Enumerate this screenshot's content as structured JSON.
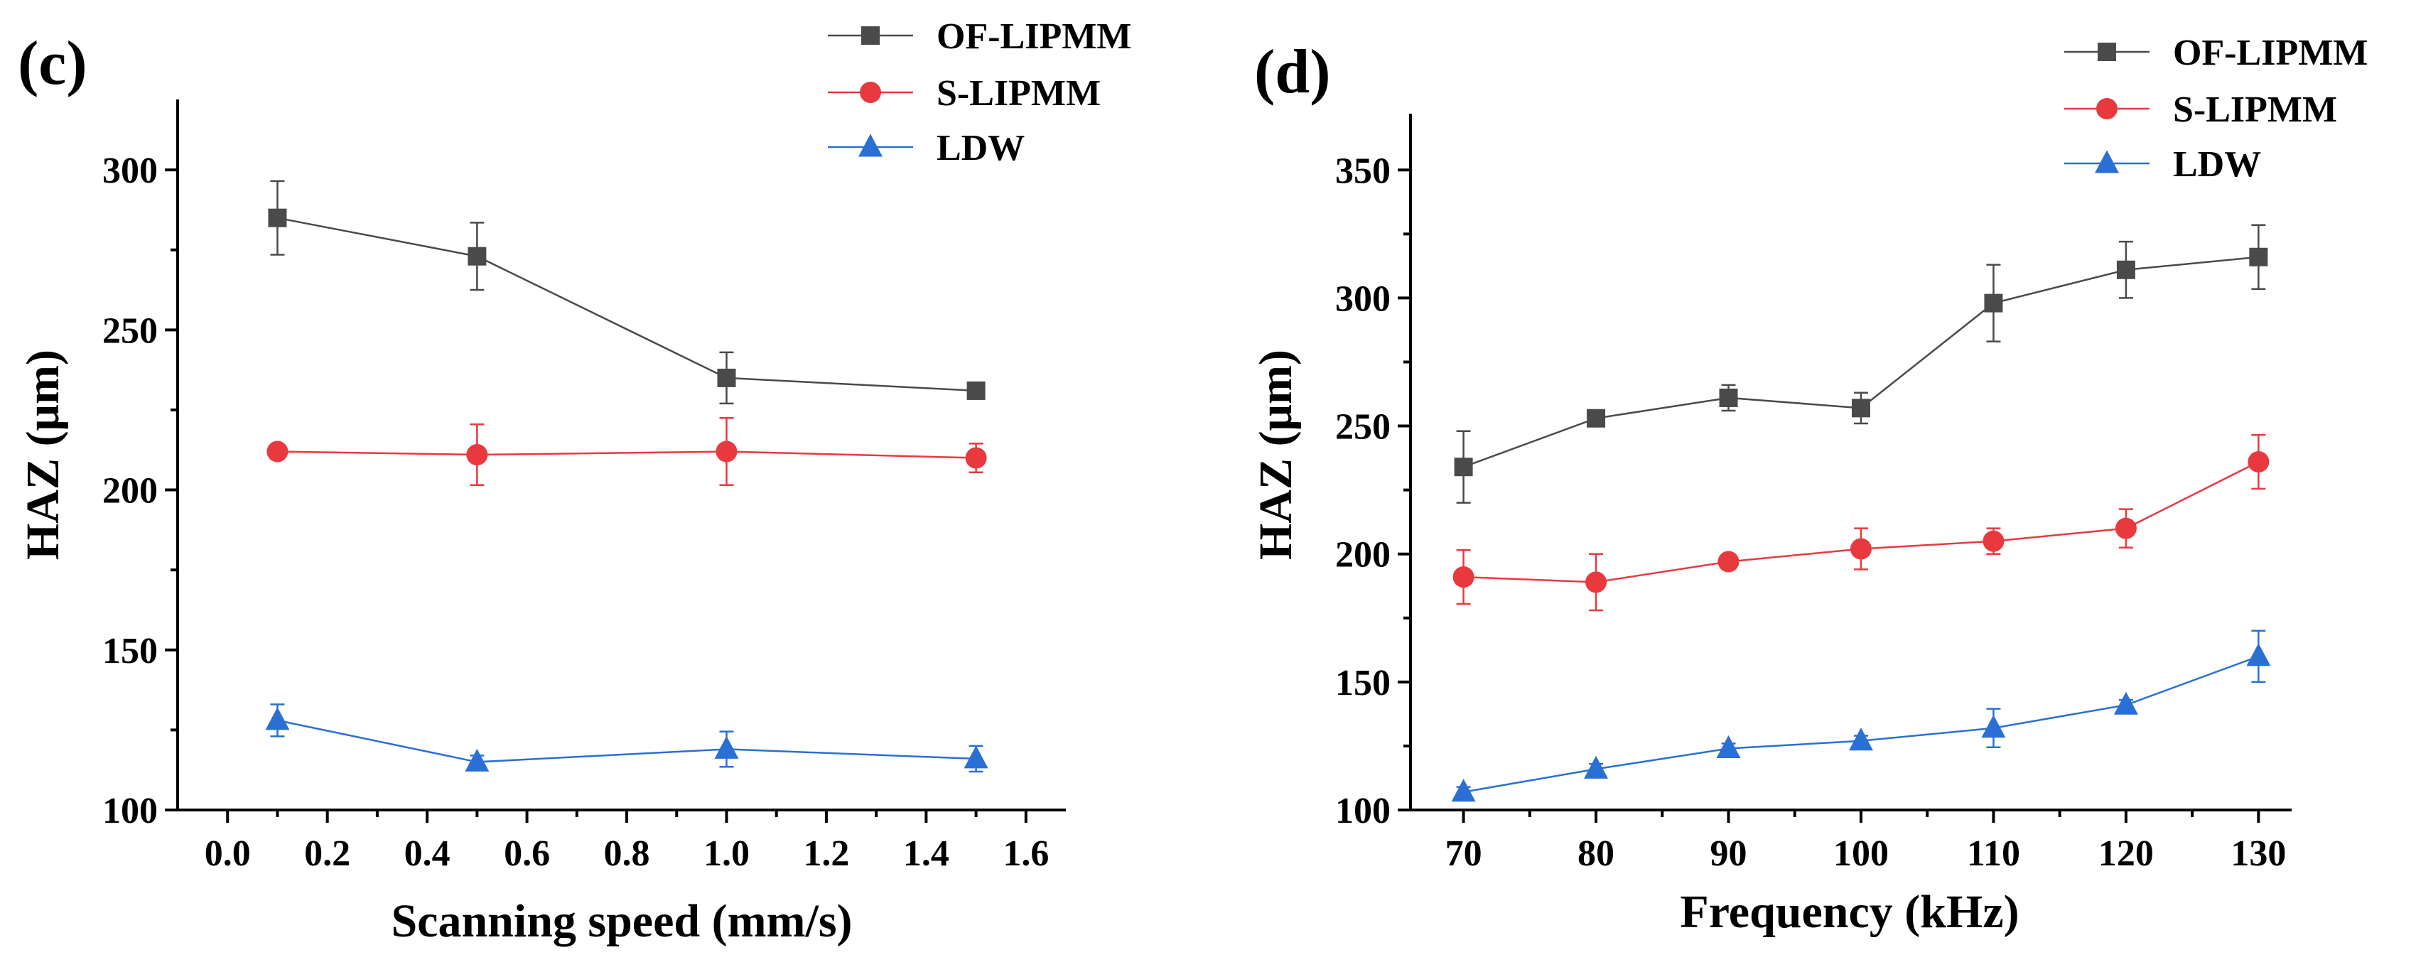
{
  "chart_data": [
    {
      "type": "line",
      "panel_label": "(c)",
      "xlabel": "Scanning speed (mm/s)",
      "ylabel": "HAZ (μm)",
      "xlim": [
        -0.1,
        1.68
      ],
      "ylim": [
        100,
        322
      ],
      "xticks": [
        0.0,
        0.2,
        0.4,
        0.6,
        0.8,
        1.0,
        1.2,
        1.4,
        1.6
      ],
      "xtick_labels": [
        "0.0",
        "0.2",
        "0.4",
        "0.6",
        "0.8",
        "1.0",
        "1.2",
        "1.4",
        "1.6"
      ],
      "yticks": [
        100,
        150,
        200,
        250,
        300
      ],
      "ytick_labels": [
        "100",
        "150",
        "200",
        "250",
        "300"
      ],
      "x": [
        0.1,
        0.5,
        1.0,
        1.5
      ],
      "legend_position": "top-right",
      "series": [
        {
          "name": "OF-LIPMM",
          "color": "#4a4a4a",
          "marker": "square",
          "values": [
            285,
            273,
            235,
            231
          ],
          "errors": [
            11.5,
            10.5,
            8,
            2
          ]
        },
        {
          "name": "S-LIPMM",
          "color": "#e8393f",
          "marker": "circle",
          "values": [
            212,
            211,
            212,
            210
          ],
          "errors": [
            2,
            9.5,
            10.5,
            4.5
          ]
        },
        {
          "name": "LDW",
          "color": "#2a6fd4",
          "marker": "triangle",
          "values": [
            128,
            115,
            119,
            116
          ],
          "errors": [
            5,
            2,
            5.5,
            4
          ]
        }
      ]
    },
    {
      "type": "line",
      "panel_label": "(d)",
      "xlabel": "Frequency (kHz)",
      "ylabel": "HAZ (μm)",
      "xlim": [
        66,
        132.5
      ],
      "ylim": [
        100,
        372
      ],
      "xticks": [
        70,
        80,
        90,
        100,
        110,
        120,
        130
      ],
      "xtick_labels": [
        "70",
        "80",
        "90",
        "100",
        "110",
        "120",
        "130"
      ],
      "yticks": [
        100,
        150,
        200,
        250,
        300,
        350
      ],
      "ytick_labels": [
        "100",
        "150",
        "200",
        "250",
        "300",
        "350"
      ],
      "x": [
        70,
        80,
        90,
        100,
        110,
        120,
        130
      ],
      "legend_position": "top-right",
      "series": [
        {
          "name": "OF-LIPMM",
          "color": "#4a4a4a",
          "marker": "square",
          "values": [
            234,
            253,
            261,
            257,
            298,
            311,
            316
          ],
          "errors": [
            14,
            2,
            5,
            6,
            15,
            11,
            12.5
          ]
        },
        {
          "name": "S-LIPMM",
          "color": "#e8393f",
          "marker": "circle",
          "values": [
            191,
            189,
            197,
            202,
            205,
            210,
            236
          ],
          "errors": [
            10.5,
            11,
            2,
            8,
            5,
            7.5,
            10.5
          ]
        },
        {
          "name": "LDW",
          "color": "#2a6fd4",
          "marker": "triangle",
          "values": [
            107,
            116,
            124,
            127,
            132,
            141,
            160
          ],
          "errors": [
            2,
            2,
            2,
            2,
            7.5,
            2,
            10
          ]
        }
      ]
    }
  ]
}
